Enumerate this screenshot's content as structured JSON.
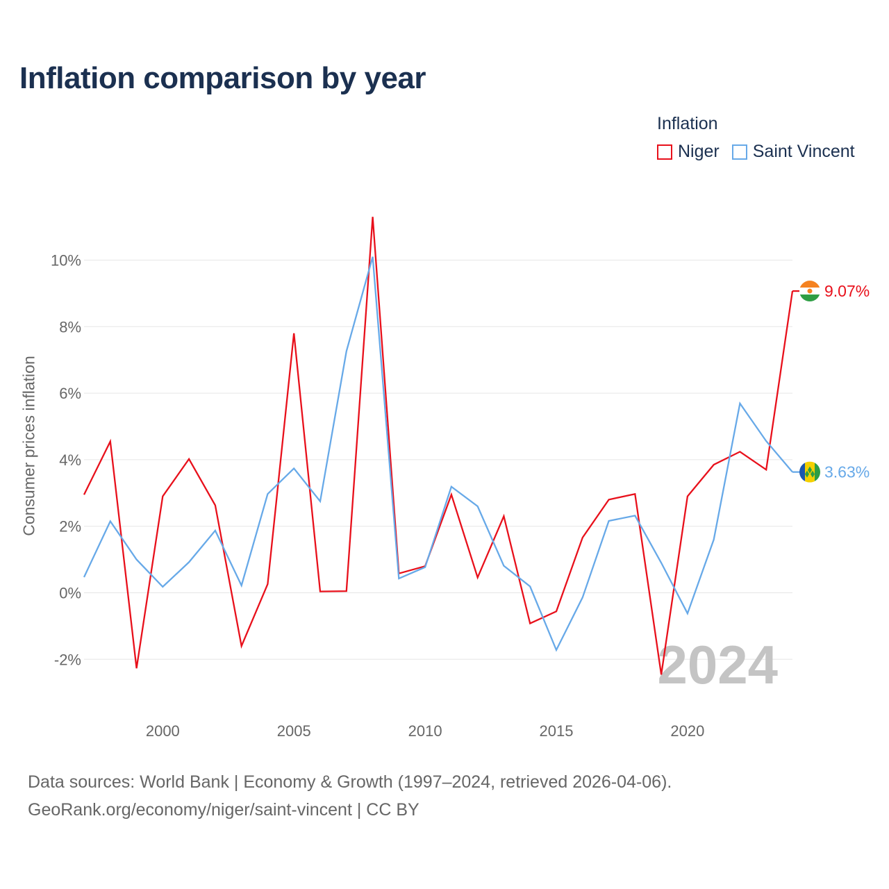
{
  "title": "Inflation comparison by year",
  "legend": {
    "title": "Inflation",
    "items": [
      {
        "label": "Niger",
        "color": "#e8101b"
      },
      {
        "label": "Saint Vincent",
        "color": "#67a9e8"
      }
    ]
  },
  "footer": {
    "line1": "Data sources: World Bank | Economy & Growth (1997–2024, retrieved 2026-04-06).",
    "line2": "GeoRank.org/economy/niger/saint-vincent | CC BY"
  },
  "chart_data": {
    "type": "line",
    "title": "Inflation comparison by year",
    "xlabel": "",
    "ylabel": "Consumer prices inflation",
    "x": [
      1997,
      1998,
      1999,
      2000,
      2001,
      2002,
      2003,
      2004,
      2005,
      2006,
      2007,
      2008,
      2009,
      2010,
      2011,
      2012,
      2013,
      2014,
      2015,
      2016,
      2017,
      2018,
      2019,
      2020,
      2021,
      2022,
      2023,
      2024
    ],
    "xlim": [
      1997,
      2024
    ],
    "ylim": [
      -3.3,
      11.4
    ],
    "x_ticks": [
      2000,
      2005,
      2010,
      2015,
      2020
    ],
    "x_tick_labels": [
      "2000",
      "2005",
      "2010",
      "2015",
      "2020"
    ],
    "y_ticks": [
      -2,
      0,
      2,
      4,
      6,
      8,
      10
    ],
    "y_tick_labels": [
      "-2%",
      "0%",
      "2%",
      "4%",
      "6%",
      "8%",
      "10%"
    ],
    "grid": true,
    "watermark_year": "2024",
    "series": [
      {
        "name": "Niger",
        "color": "#e8101b",
        "values": [
          2.95,
          4.55,
          -2.27,
          2.9,
          4.02,
          2.63,
          -1.6,
          0.26,
          7.8,
          0.04,
          0.05,
          11.3,
          0.58,
          0.8,
          2.95,
          0.46,
          2.3,
          -0.92,
          -0.56,
          1.66,
          2.8,
          2.97,
          -2.46,
          2.9,
          3.85,
          4.24,
          3.7,
          9.07
        ],
        "end_label": "9.07%",
        "flag": "niger-flag-icon"
      },
      {
        "name": "Saint Vincent",
        "color": "#67a9e8",
        "values": [
          0.47,
          2.15,
          1.0,
          0.18,
          0.92,
          1.87,
          0.22,
          2.97,
          3.74,
          2.75,
          7.26,
          10.1,
          0.43,
          0.77,
          3.19,
          2.6,
          0.81,
          0.19,
          -1.72,
          -0.14,
          2.16,
          2.32,
          0.9,
          -0.62,
          1.6,
          5.69,
          4.56,
          3.63
        ],
        "end_label": "3.63%",
        "flag": "saint-vincent-flag-icon"
      }
    ]
  }
}
